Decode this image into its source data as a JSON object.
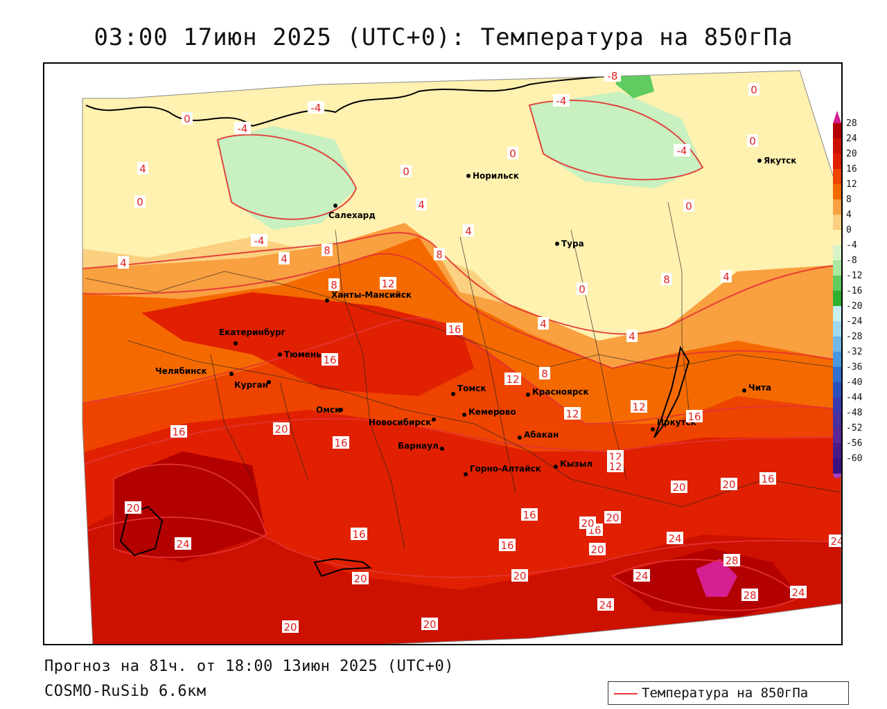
{
  "title": "03:00 17июн 2025 (UTC+0): Температура на 850гПа",
  "footer": {
    "forecast": "Прогноз на 81ч. от 18:00 13июн 2025 (UTC+0)",
    "model": "COSMO-RuSib 6.6км"
  },
  "legend": {
    "label": "Температура на 850гПа",
    "line_color": "#e33333"
  },
  "color_scale": {
    "labels": [
      "28",
      "24",
      "20",
      "16",
      "12",
      "8",
      "4",
      "0",
      "-4",
      "-8",
      "-12",
      "-16",
      "-20",
      "-24",
      "-28",
      "-32",
      "-36",
      "-40",
      "-44",
      "-48",
      "-52",
      "-56",
      "-60"
    ],
    "colors": [
      "#b30000",
      "#cc1100",
      "#e02000",
      "#ee4400",
      "#f56a00",
      "#f9a040",
      "#fbd080",
      "#fff1b0",
      "#d8f5c8",
      "#a8e8a0",
      "#60cc60",
      "#30b030",
      "#c8f0f0",
      "#a0d8f0",
      "#70b8e8",
      "#4898e0",
      "#3070d0",
      "#2a50c0",
      "#3a3ab0",
      "#4a30a0",
      "#5a2896",
      "#4a1a8a",
      "#3a1080"
    ],
    "top_color": "#d42090",
    "bottom_color": "#a040c0"
  },
  "cities": [
    {
      "name": "Норильск"
    },
    {
      "name": "Салехард"
    },
    {
      "name": "Якутск"
    },
    {
      "name": "Тура"
    },
    {
      "name": "Ханты-Мансийск"
    },
    {
      "name": "Екатеринбург"
    },
    {
      "name": "Тюмень"
    },
    {
      "name": "Челябинск"
    },
    {
      "name": "Курган"
    },
    {
      "name": "Омск"
    },
    {
      "name": "Новосибирск"
    },
    {
      "name": "Томск"
    },
    {
      "name": "Кемерово"
    },
    {
      "name": "Красноярск"
    },
    {
      "name": "Абакан"
    },
    {
      "name": "Барнаул"
    },
    {
      "name": "Горно-Алтайск"
    },
    {
      "name": "Кызыл"
    },
    {
      "name": "Иркутск"
    },
    {
      "name": "Чита"
    }
  ],
  "isotherm_labels": [
    "-8",
    "0",
    "-4",
    "-4",
    "-4",
    "-4",
    "0",
    "0",
    "0",
    "0",
    "4",
    "0",
    "-4",
    "0",
    "4",
    "4",
    "4",
    "8",
    "8",
    "12",
    "4",
    "0",
    "8",
    "4",
    "8",
    "4",
    "4",
    "16",
    "16",
    "12",
    "8",
    "12",
    "12",
    "16",
    "12",
    "12",
    "16",
    "16",
    "16",
    "20",
    "20",
    "20",
    "20",
    "24",
    "16",
    "16",
    "16",
    "20",
    "20",
    "16",
    "20",
    "24",
    "20",
    "20",
    "24",
    "28",
    "28",
    "24",
    "24",
    "20",
    "20",
    "24"
  ]
}
